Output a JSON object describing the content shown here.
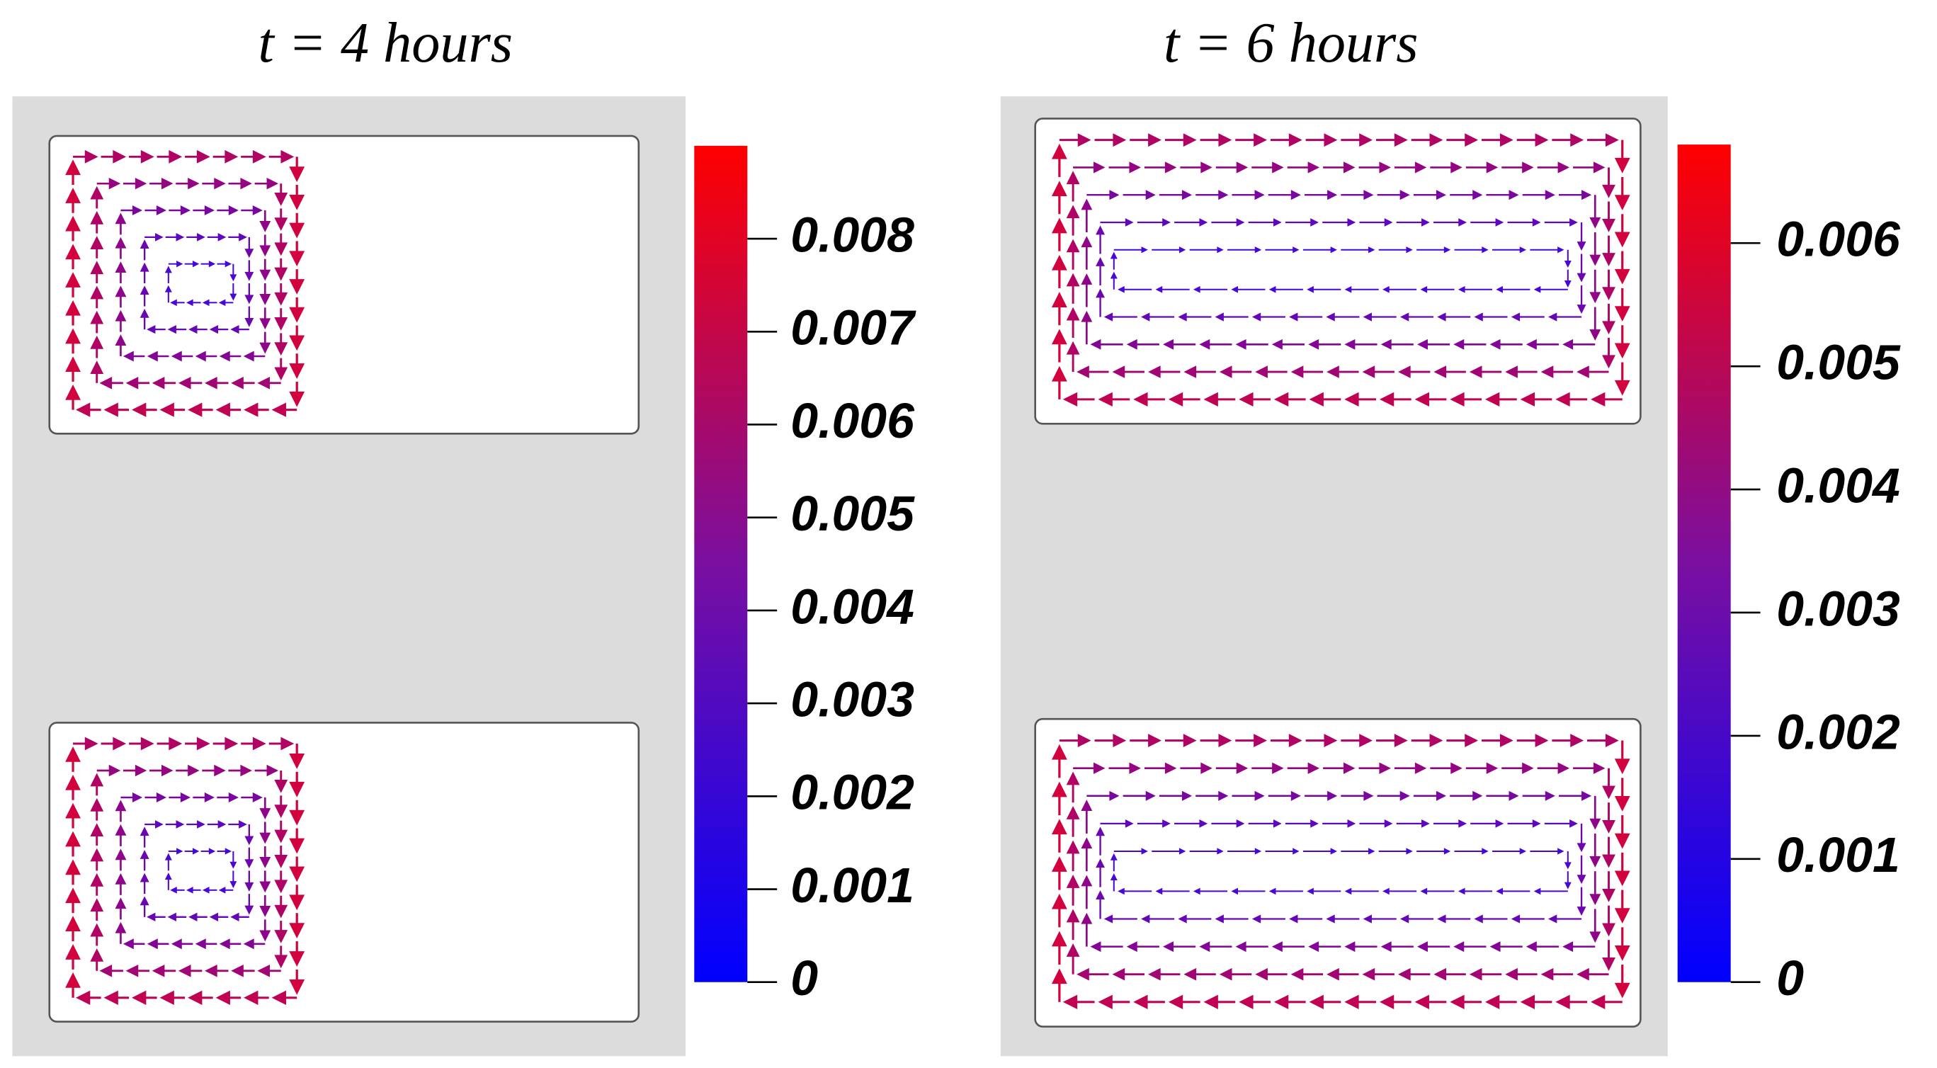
{
  "panels": [
    {
      "title": "t = 4 hours",
      "colorbar": {
        "lim": [
          0,
          0.009
        ],
        "ticks": [
          0,
          0.001,
          0.002,
          0.003,
          0.004,
          0.005,
          0.006,
          0.007,
          0.008
        ]
      }
    },
    {
      "title": "t = 6 hours",
      "colorbar": {
        "lim": [
          0,
          0.0068
        ],
        "ticks": [
          0,
          0.001,
          0.002,
          0.003,
          0.004,
          0.005,
          0.006
        ]
      }
    }
  ]
}
